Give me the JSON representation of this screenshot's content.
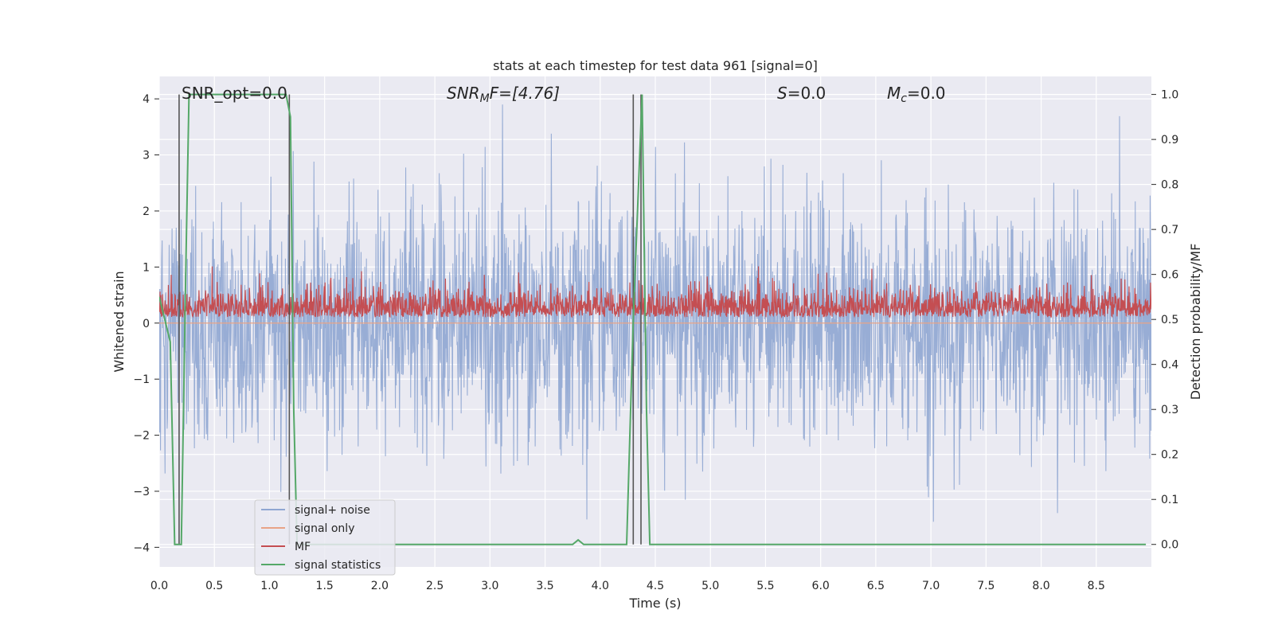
{
  "chart_data": {
    "type": "line",
    "title": "stats at each timestep for test data 961 [signal=0]",
    "xlabel": "Time (s)",
    "ylabel_left": "Whitened strain",
    "ylabel_right": "Detection probability/MF",
    "xlim": [
      0.0,
      9.0
    ],
    "ylim_left": [
      -4.35,
      4.4
    ],
    "ylim_right": [
      -0.05,
      1.04
    ],
    "xticks": [
      "0.0",
      "0.5",
      "1.0",
      "1.5",
      "2.0",
      "2.5",
      "3.0",
      "3.5",
      "4.0",
      "4.5",
      "5.0",
      "5.5",
      "6.0",
      "6.5",
      "7.0",
      "7.5",
      "8.0",
      "8.5"
    ],
    "yticks_left": [
      "4",
      "3",
      "2",
      "1",
      "0",
      "−1",
      "−2",
      "−3",
      "−4"
    ],
    "yticks_right": [
      "1.0",
      "0.9",
      "0.8",
      "0.7",
      "0.6",
      "0.5",
      "0.4",
      "0.3",
      "0.2",
      "0.1",
      "0.0"
    ],
    "grid": true,
    "legend_placement": "lower-left",
    "annotations": {
      "snr_opt": "SNR_opt=0.0",
      "snr_mf_prefix": "SNR",
      "snr_mf_sub": "M",
      "snr_mf_suffix": "F=[4.76]",
      "s_prefix": "S",
      "s_suffix": "=0.0",
      "mc_prefix": "M",
      "mc_sub": "c",
      "mc_suffix": "=0.0"
    },
    "series": [
      {
        "name": "signal+ noise",
        "color": "#8fa6d2",
        "axis": "left",
        "style": "dense noise, amplitude about ±3"
      },
      {
        "name": "signal only",
        "color": "#e8a386",
        "axis": "left",
        "values": "all zero"
      },
      {
        "name": "MF",
        "color": "#c44e52",
        "axis": "right",
        "style": "dense noise between 0.5 and 0.6"
      },
      {
        "name": "signal statistics",
        "color": "#55a868",
        "axis": "right",
        "x": [
          0.0,
          0.05,
          0.1,
          0.14,
          0.2,
          0.24,
          0.27,
          1.1,
          1.15,
          1.19,
          1.22,
          1.25,
          1.3,
          3.7,
          3.75,
          3.8,
          3.85,
          3.9,
          4.24,
          4.3,
          4.38,
          4.42,
          4.45,
          8.95
        ],
        "y": [
          0.55,
          0.5,
          0.45,
          0.0,
          0.0,
          0.6,
          1.0,
          1.0,
          1.0,
          0.95,
          0.3,
          0.0,
          0.0,
          0.0,
          0.0,
          0.01,
          0.0,
          0.0,
          0.0,
          0.5,
          1.0,
          0.3,
          0.0,
          0.0
        ]
      }
    ],
    "vertical_markers_x": [
      0.18,
      1.18,
      4.3,
      4.37
    ]
  }
}
